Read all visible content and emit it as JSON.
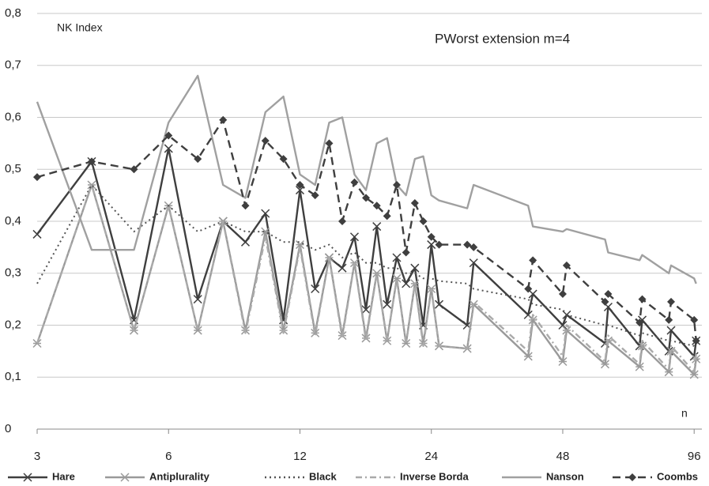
{
  "chart_data": {
    "type": "line",
    "annotations": [
      "NK Index",
      "PWorst extension m=4",
      "n"
    ],
    "x": [
      3,
      4,
      5,
      6,
      7,
      8,
      9,
      10,
      11,
      12,
      13,
      14,
      15,
      16,
      17,
      18,
      19,
      20,
      21,
      22,
      23,
      24,
      25,
      29,
      30,
      40,
      41,
      48,
      49,
      60,
      61,
      72,
      73,
      84,
      85,
      96,
      97
    ],
    "xlim": [
      3,
      100
    ],
    "xticks": [
      3,
      6,
      12,
      24,
      48,
      96
    ],
    "xscale": "log",
    "ylim": [
      0,
      0.8
    ],
    "yticks": [
      0,
      {
        "value": 0.1,
        "label": "0,1"
      },
      {
        "value": 0.2,
        "label": "0,2"
      },
      {
        "value": 0.3,
        "label": "0,3"
      },
      {
        "value": 0.4,
        "label": "0,4"
      },
      {
        "value": 0.5,
        "label": "0,5"
      },
      {
        "value": 0.6,
        "label": "0,6"
      },
      {
        "value": 0.7,
        "label": "0,7"
      },
      {
        "value": 0.8,
        "label": "0,8"
      }
    ],
    "grid": true,
    "legend": "bottom",
    "series": [
      {
        "name": "Hare",
        "color": "#3f3f3f",
        "style": "solid",
        "marker": "x",
        "values": [
          0.375,
          0.515,
          0.21,
          0.54,
          0.25,
          0.4,
          0.36,
          0.415,
          0.21,
          0.46,
          0.27,
          0.33,
          0.31,
          0.37,
          0.23,
          0.39,
          0.24,
          0.33,
          0.28,
          0.31,
          0.2,
          0.355,
          0.24,
          0.2,
          0.32,
          0.22,
          0.26,
          0.2,
          0.22,
          0.165,
          0.235,
          0.16,
          0.21,
          0.15,
          0.19,
          0.14,
          0.17
        ]
      },
      {
        "name": "Antiplurality",
        "color": "#9a9a9a",
        "style": "solid",
        "marker": "star",
        "values": [
          0.165,
          0.47,
          0.19,
          0.43,
          0.19,
          0.4,
          0.19,
          0.38,
          0.19,
          0.355,
          0.185,
          0.33,
          0.18,
          0.32,
          0.175,
          0.3,
          0.17,
          0.29,
          0.165,
          0.28,
          0.165,
          0.27,
          0.16,
          0.155,
          0.24,
          0.14,
          0.21,
          0.13,
          0.19,
          0.125,
          0.17,
          0.12,
          0.16,
          0.11,
          0.15,
          0.105,
          0.135
        ]
      },
      {
        "name": "Black",
        "color": "#555555",
        "style": "dotted",
        "marker": "none",
        "values": [
          0.28,
          0.47,
          0.38,
          0.43,
          0.38,
          0.4,
          0.38,
          0.38,
          0.36,
          0.36,
          0.345,
          0.355,
          0.33,
          0.34,
          0.32,
          0.32,
          0.31,
          0.31,
          0.3,
          0.3,
          0.29,
          0.29,
          0.285,
          0.28,
          0.27,
          0.25,
          0.24,
          0.23,
          0.22,
          0.2,
          0.2,
          0.18,
          0.185,
          0.17,
          0.17,
          0.16,
          0.155
        ]
      },
      {
        "name": "Inverse Borda",
        "color": "#aaaaaa",
        "style": "dashdot",
        "marker": "none",
        "values": [
          0.165,
          0.47,
          0.19,
          0.43,
          0.19,
          0.4,
          0.185,
          0.37,
          0.185,
          0.35,
          0.18,
          0.33,
          0.175,
          0.32,
          0.17,
          0.3,
          0.17,
          0.29,
          0.165,
          0.28,
          0.16,
          0.27,
          0.16,
          0.155,
          0.245,
          0.15,
          0.22,
          0.14,
          0.2,
          0.13,
          0.18,
          0.125,
          0.17,
          0.115,
          0.16,
          0.11,
          0.145
        ]
      },
      {
        "name": "Nanson",
        "color": "#a0a0a0",
        "style": "solid",
        "marker": "none",
        "values": [
          0.63,
          0.345,
          0.345,
          0.59,
          0.68,
          0.47,
          0.445,
          0.61,
          0.64,
          0.49,
          0.47,
          0.59,
          0.6,
          0.49,
          0.46,
          0.55,
          0.56,
          0.47,
          0.45,
          0.52,
          0.525,
          0.45,
          0.44,
          0.425,
          0.47,
          0.43,
          0.39,
          0.38,
          0.385,
          0.365,
          0.34,
          0.325,
          0.335,
          0.3,
          0.315,
          0.29,
          0.28
        ]
      },
      {
        "name": "Coombs",
        "color": "#3f3f3f",
        "style": "dashed",
        "marker": "diamond",
        "values": [
          0.485,
          0.515,
          0.5,
          0.565,
          0.52,
          0.595,
          0.43,
          0.555,
          0.52,
          0.47,
          0.45,
          0.55,
          0.4,
          0.475,
          0.445,
          0.43,
          0.41,
          0.47,
          0.34,
          0.435,
          0.4,
          0.37,
          0.355,
          0.355,
          0.35,
          0.27,
          0.325,
          0.26,
          0.315,
          0.245,
          0.26,
          0.205,
          0.25,
          0.21,
          0.245,
          0.21,
          0.17
        ]
      }
    ]
  }
}
